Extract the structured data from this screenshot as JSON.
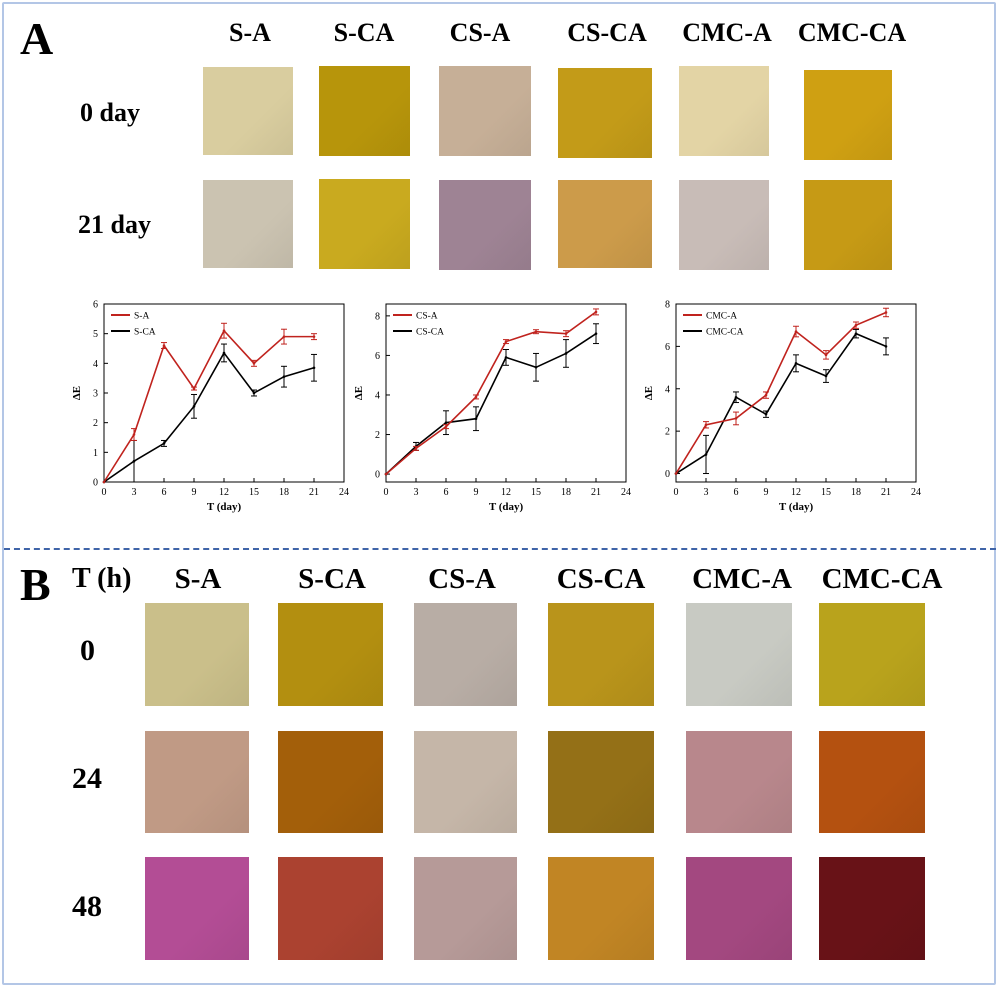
{
  "panel_a": {
    "letter": "A",
    "columns": [
      "S-A",
      "S-CA",
      "CS-A",
      "CS-CA",
      "CMC-A",
      "CMC-CA"
    ],
    "rows": [
      {
        "label": "0 day",
        "swatch_colors": [
          "#d9cd9f",
          "#b7950b",
          "#c6af97",
          "#c39b18",
          "#e3d4a5",
          "#cfa012"
        ]
      },
      {
        "label": "21 day",
        "swatch_colors": [
          "#cbc3b1",
          "#c9aa1f",
          "#9e8394",
          "#cc9b4a",
          "#c8bcb7",
          "#c69a15"
        ]
      }
    ]
  },
  "panel_b": {
    "letter": "B",
    "corner_label": "T (h)",
    "columns": [
      "S-A",
      "S-CA",
      "CS-A",
      "CS-CA",
      "CMC-A",
      "CMC-CA"
    ],
    "rows": [
      {
        "label": "0",
        "swatch_colors": [
          "#cabf8a",
          "#b38f10",
          "#b8ada5",
          "#b9941b",
          "#c8cac3",
          "#b9a31c"
        ]
      },
      {
        "label": "24",
        "swatch_colors": [
          "#c09a85",
          "#a35f0a",
          "#c5b6a8",
          "#947017",
          "#b8878c",
          "#b45110"
        ]
      },
      {
        "label": "48",
        "swatch_colors": [
          "#b34d95",
          "#ab4230",
          "#b69a98",
          "#c18524",
          "#a34880",
          "#681217"
        ]
      }
    ]
  },
  "chart_data": [
    {
      "type": "line",
      "xlabel": "T (day)",
      "ylabel": "ΔE",
      "xlim": [
        0,
        24
      ],
      "ylim": [
        0,
        6
      ],
      "xticks": [
        0,
        3,
        6,
        9,
        12,
        15,
        18,
        21,
        24
      ],
      "yticks": [
        0,
        1,
        2,
        3,
        4,
        5,
        6
      ],
      "legend_position": "top-left",
      "x": [
        0,
        3,
        6,
        9,
        12,
        15,
        18,
        21
      ],
      "series": [
        {
          "name": "S-A",
          "color": "#c0231e",
          "values": [
            0,
            1.6,
            4.6,
            3.15,
            5.1,
            4.0,
            4.9,
            4.9
          ],
          "errors": [
            0,
            0.2,
            0.1,
            0.05,
            0.25,
            0.1,
            0.25,
            0.1
          ]
        },
        {
          "name": "S-CA",
          "color": "#000000",
          "values": [
            0,
            0.7,
            1.3,
            2.55,
            4.35,
            3.0,
            3.55,
            3.85
          ],
          "errors": [
            0,
            0.7,
            0.1,
            0.4,
            0.3,
            0.1,
            0.35,
            0.45
          ]
        }
      ]
    },
    {
      "type": "line",
      "xlabel": "T (day)",
      "ylabel": "ΔE",
      "xlim": [
        0,
        24
      ],
      "ylim": [
        -0.4,
        8.6
      ],
      "xticks": [
        0,
        3,
        6,
        9,
        12,
        15,
        18,
        21,
        24
      ],
      "yticks": [
        0,
        2,
        4,
        6,
        8
      ],
      "legend_position": "top-left",
      "x": [
        0,
        3,
        6,
        9,
        12,
        15,
        18,
        21
      ],
      "series": [
        {
          "name": "CS-A",
          "color": "#c0231e",
          "values": [
            0,
            1.3,
            2.4,
            3.9,
            6.7,
            7.2,
            7.1,
            8.2
          ],
          "errors": [
            0,
            0.1,
            0.1,
            0.1,
            0.1,
            0.1,
            0.15,
            0.15
          ]
        },
        {
          "name": "CS-CA",
          "color": "#000000",
          "values": [
            0,
            1.4,
            2.6,
            2.8,
            5.9,
            5.4,
            6.1,
            7.1
          ],
          "errors": [
            0,
            0.2,
            0.6,
            0.6,
            0.4,
            0.7,
            0.7,
            0.5
          ]
        }
      ]
    },
    {
      "type": "line",
      "xlabel": "T (day)",
      "ylabel": "ΔE",
      "xlim": [
        0,
        24
      ],
      "ylim": [
        -0.4,
        8
      ],
      "xticks": [
        0,
        3,
        6,
        9,
        12,
        15,
        18,
        21,
        24
      ],
      "yticks": [
        0,
        2,
        4,
        6,
        8
      ],
      "legend_position": "top-left",
      "x": [
        0,
        3,
        6,
        9,
        12,
        15,
        18,
        21
      ],
      "series": [
        {
          "name": "CMC-A",
          "color": "#c0231e",
          "values": [
            0,
            2.3,
            2.6,
            3.7,
            6.7,
            5.6,
            7.0,
            7.6
          ],
          "errors": [
            0,
            0.15,
            0.3,
            0.15,
            0.25,
            0.2,
            0.15,
            0.2
          ]
        },
        {
          "name": "CMC-CA",
          "color": "#000000",
          "values": [
            0,
            0.9,
            3.6,
            2.8,
            5.2,
            4.6,
            6.6,
            6.0
          ],
          "errors": [
            0,
            0.9,
            0.25,
            0.15,
            0.4,
            0.3,
            0.2,
            0.4
          ]
        }
      ]
    }
  ]
}
